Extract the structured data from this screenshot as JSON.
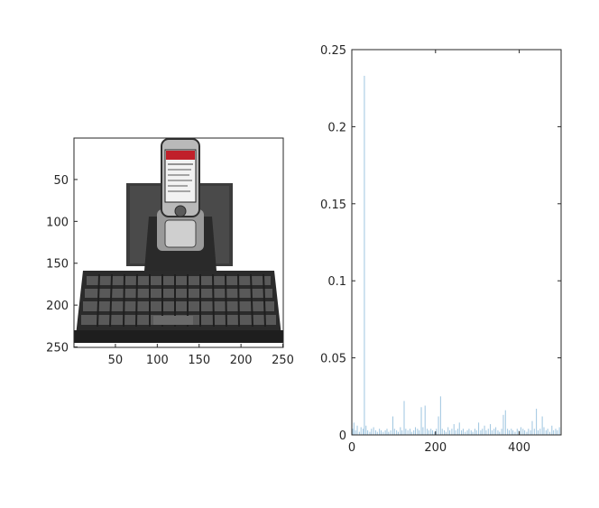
{
  "chart_data": [
    {
      "type": "image",
      "image_description_label": "",
      "x_ticks": [
        "50",
        "100",
        "150",
        "200",
        "250"
      ],
      "y_ticks": [
        "50",
        "100",
        "150",
        "200",
        "250"
      ],
      "xlim": [
        0.5,
        250.5
      ],
      "ylim": [
        0.5,
        250.5
      ],
      "y_reversed": true,
      "grid": false
    },
    {
      "type": "bar",
      "xlim": [
        0,
        500
      ],
      "ylim": [
        0,
        0.25
      ],
      "x_ticks": [
        "0",
        "200",
        "400"
      ],
      "y_ticks": [
        "0",
        "0.05",
        "0.1",
        "0.15",
        "0.2",
        "0.25"
      ],
      "grid": false,
      "color": "#9ec5e0",
      "series": [
        {
          "x": [
            2,
            5,
            9,
            13,
            18,
            22,
            27,
            30,
            34,
            38,
            43,
            47,
            52,
            57,
            61,
            66,
            70,
            75,
            80,
            84,
            88,
            93,
            98,
            102,
            107,
            111,
            116,
            120,
            125,
            129,
            134,
            139,
            143,
            148,
            152,
            157,
            161,
            166,
            170,
            175,
            180,
            184,
            189,
            193,
            198,
            202,
            207,
            212,
            216,
            221,
            225,
            230,
            234,
            239,
            244,
            248,
            253,
            257,
            262,
            266,
            271,
            276,
            280,
            285,
            289,
            294,
            298,
            303,
            308,
            312,
            317,
            321,
            326,
            331,
            335,
            340,
            344,
            349,
            353,
            358,
            362,
            367,
            372,
            376,
            381,
            385,
            390,
            395,
            399,
            404,
            409,
            413,
            418,
            422,
            427,
            431,
            436,
            441,
            445,
            450,
            455,
            459,
            464,
            468,
            473,
            478,
            482,
            487,
            491,
            496
          ],
          "values": [
            0.004,
            0.008,
            0.003,
            0.006,
            0.002,
            0.005,
            0.004,
            0.233,
            0.006,
            0.003,
            0.002,
            0.004,
            0.005,
            0.003,
            0.002,
            0.004,
            0.003,
            0.002,
            0.003,
            0.004,
            0.002,
            0.003,
            0.012,
            0.004,
            0.003,
            0.002,
            0.005,
            0.003,
            0.022,
            0.004,
            0.003,
            0.004,
            0.002,
            0.003,
            0.005,
            0.004,
            0.003,
            0.018,
            0.005,
            0.019,
            0.004,
            0.003,
            0.004,
            0.003,
            0.002,
            0.004,
            0.012,
            0.025,
            0.004,
            0.003,
            0.002,
            0.005,
            0.003,
            0.004,
            0.007,
            0.003,
            0.004,
            0.008,
            0.003,
            0.004,
            0.002,
            0.003,
            0.004,
            0.003,
            0.002,
            0.004,
            0.003,
            0.008,
            0.003,
            0.004,
            0.006,
            0.003,
            0.004,
            0.007,
            0.003,
            0.004,
            0.005,
            0.003,
            0.002,
            0.004,
            0.013,
            0.016,
            0.004,
            0.003,
            0.004,
            0.003,
            0.002,
            0.004,
            0.003,
            0.005,
            0.004,
            0.003,
            0.002,
            0.004,
            0.003,
            0.009,
            0.004,
            0.017,
            0.003,
            0.004,
            0.012,
            0.005,
            0.003,
            0.004,
            0.002,
            0.006,
            0.003,
            0.004,
            0.003,
            0.005
          ]
        }
      ]
    }
  ]
}
